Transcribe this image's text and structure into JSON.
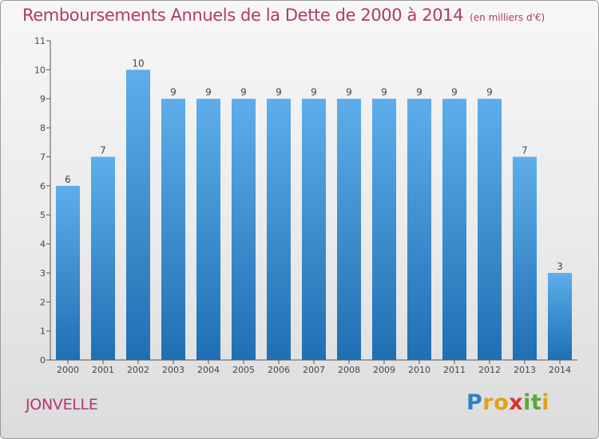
{
  "chart_data": {
    "type": "bar",
    "title": "Remboursements Annuels de la Dette de 2000 à 2014",
    "subtitle": "(en milliers d'€)",
    "categories": [
      "2000",
      "2001",
      "2002",
      "2003",
      "2004",
      "2005",
      "2006",
      "2007",
      "2008",
      "2009",
      "2010",
      "2011",
      "2012",
      "2013",
      "2014"
    ],
    "values": [
      6,
      7,
      10,
      9,
      9,
      9,
      9,
      9,
      9,
      9,
      9,
      9,
      9,
      7,
      3
    ],
    "data_labels": [
      "6",
      "7",
      "10",
      "9",
      "9",
      "9",
      "9",
      "9",
      "9",
      "9",
      "9",
      "9",
      "9",
      "7",
      "3"
    ],
    "ylim": [
      0,
      11
    ],
    "yticks": [
      0,
      1,
      2,
      3,
      4,
      5,
      6,
      7,
      8,
      9,
      10,
      11
    ],
    "xlabel": "",
    "ylabel": "",
    "grid": false,
    "bar_color_top": "#5daeea",
    "bar_color_bottom": "#1f6fb3"
  },
  "footer": {
    "city": "JONVELLE",
    "brand": [
      "P",
      "r",
      "o",
      "x",
      "i",
      "t",
      "i"
    ],
    "brand_colors": [
      "#2e7fcf",
      "#e0a21a",
      "#e0a21a",
      "#d8342b",
      "#5aa93b",
      "#5aa93b",
      "#e0a21a"
    ]
  }
}
